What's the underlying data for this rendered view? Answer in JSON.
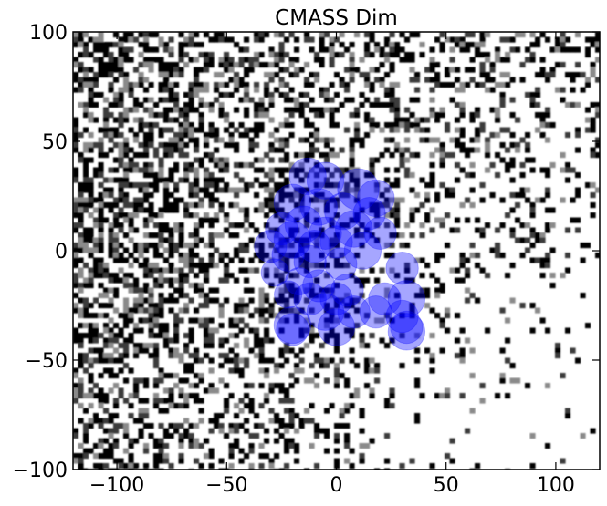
{
  "chart_data": {
    "type": "scatter",
    "title": "CMASS Dim",
    "xlabel": "",
    "ylabel": "",
    "xlim": [
      -120,
      120
    ],
    "ylim": [
      -100,
      100
    ],
    "x_ticks": [
      -100,
      -50,
      0,
      50,
      100
    ],
    "y_ticks": [
      -100,
      -50,
      0,
      50,
      100
    ],
    "x_tick_labels": [
      "−100",
      "−50",
      "0",
      "50",
      "100"
    ],
    "y_tick_labels": [
      "−100",
      "−50",
      "0",
      "50",
      "100"
    ],
    "grid": false,
    "legend": null,
    "background": {
      "kind": "binary noise map (black/white cells)",
      "density_trend": "denser on the left, sparser toward the lower right"
    },
    "marker": {
      "shape": "circle",
      "color": "#0000ff",
      "alpha": 0.35
    },
    "series": [
      {
        "points": [
          {
            "x": -13,
            "y": 34,
            "r": 8
          },
          {
            "x": -5,
            "y": 32,
            "r": 8
          },
          {
            "x": 10,
            "y": 28,
            "r": 9
          },
          {
            "x": 18,
            "y": 24,
            "r": 8
          },
          {
            "x": -20,
            "y": 22,
            "r": 8
          },
          {
            "x": -8,
            "y": 20,
            "r": 8
          },
          {
            "x": 3,
            "y": 18,
            "r": 8
          },
          {
            "x": 15,
            "y": 17,
            "r": 7
          },
          {
            "x": -25,
            "y": 10,
            "r": 7
          },
          {
            "x": -15,
            "y": 12,
            "r": 8
          },
          {
            "x": -5,
            "y": 8,
            "r": 7
          },
          {
            "x": 8,
            "y": 10,
            "r": 8
          },
          {
            "x": 20,
            "y": 8,
            "r": 7
          },
          {
            "x": -30,
            "y": 2,
            "r": 7
          },
          {
            "x": -20,
            "y": 5,
            "r": 8
          },
          {
            "x": -10,
            "y": 2,
            "r": 7
          },
          {
            "x": 0,
            "y": 4,
            "r": 7
          },
          {
            "x": 12,
            "y": 0,
            "r": 8
          },
          {
            "x": -22,
            "y": -2,
            "r": 7
          },
          {
            "x": -12,
            "y": -5,
            "r": 7
          },
          {
            "x": 2,
            "y": -6,
            "r": 7
          },
          {
            "x": 30,
            "y": -8,
            "r": 7
          },
          {
            "x": -28,
            "y": -10,
            "r": 6
          },
          {
            "x": -17,
            "y": -14,
            "r": 6
          },
          {
            "x": -8,
            "y": -16,
            "r": 7
          },
          {
            "x": 5,
            "y": -18,
            "r": 7
          },
          {
            "x": -22,
            "y": -20,
            "r": 6
          },
          {
            "x": -12,
            "y": -22,
            "r": 7
          },
          {
            "x": 0,
            "y": -22,
            "r": 7
          },
          {
            "x": 22,
            "y": -22,
            "r": 7
          },
          {
            "x": 32,
            "y": -22,
            "r": 8
          },
          {
            "x": -5,
            "y": -28,
            "r": 8
          },
          {
            "x": 8,
            "y": -28,
            "r": 7
          },
          {
            "x": 18,
            "y": -28,
            "r": 7
          },
          {
            "x": 30,
            "y": -30,
            "r": 7
          },
          {
            "x": -20,
            "y": -34,
            "r": 8
          },
          {
            "x": 0,
            "y": -35,
            "r": 8
          },
          {
            "x": 32,
            "y": -35,
            "r": 7
          },
          {
            "x": -20,
            "y": -36,
            "r": 7
          },
          {
            "x": 32,
            "y": -37,
            "r": 8
          }
        ]
      }
    ]
  }
}
